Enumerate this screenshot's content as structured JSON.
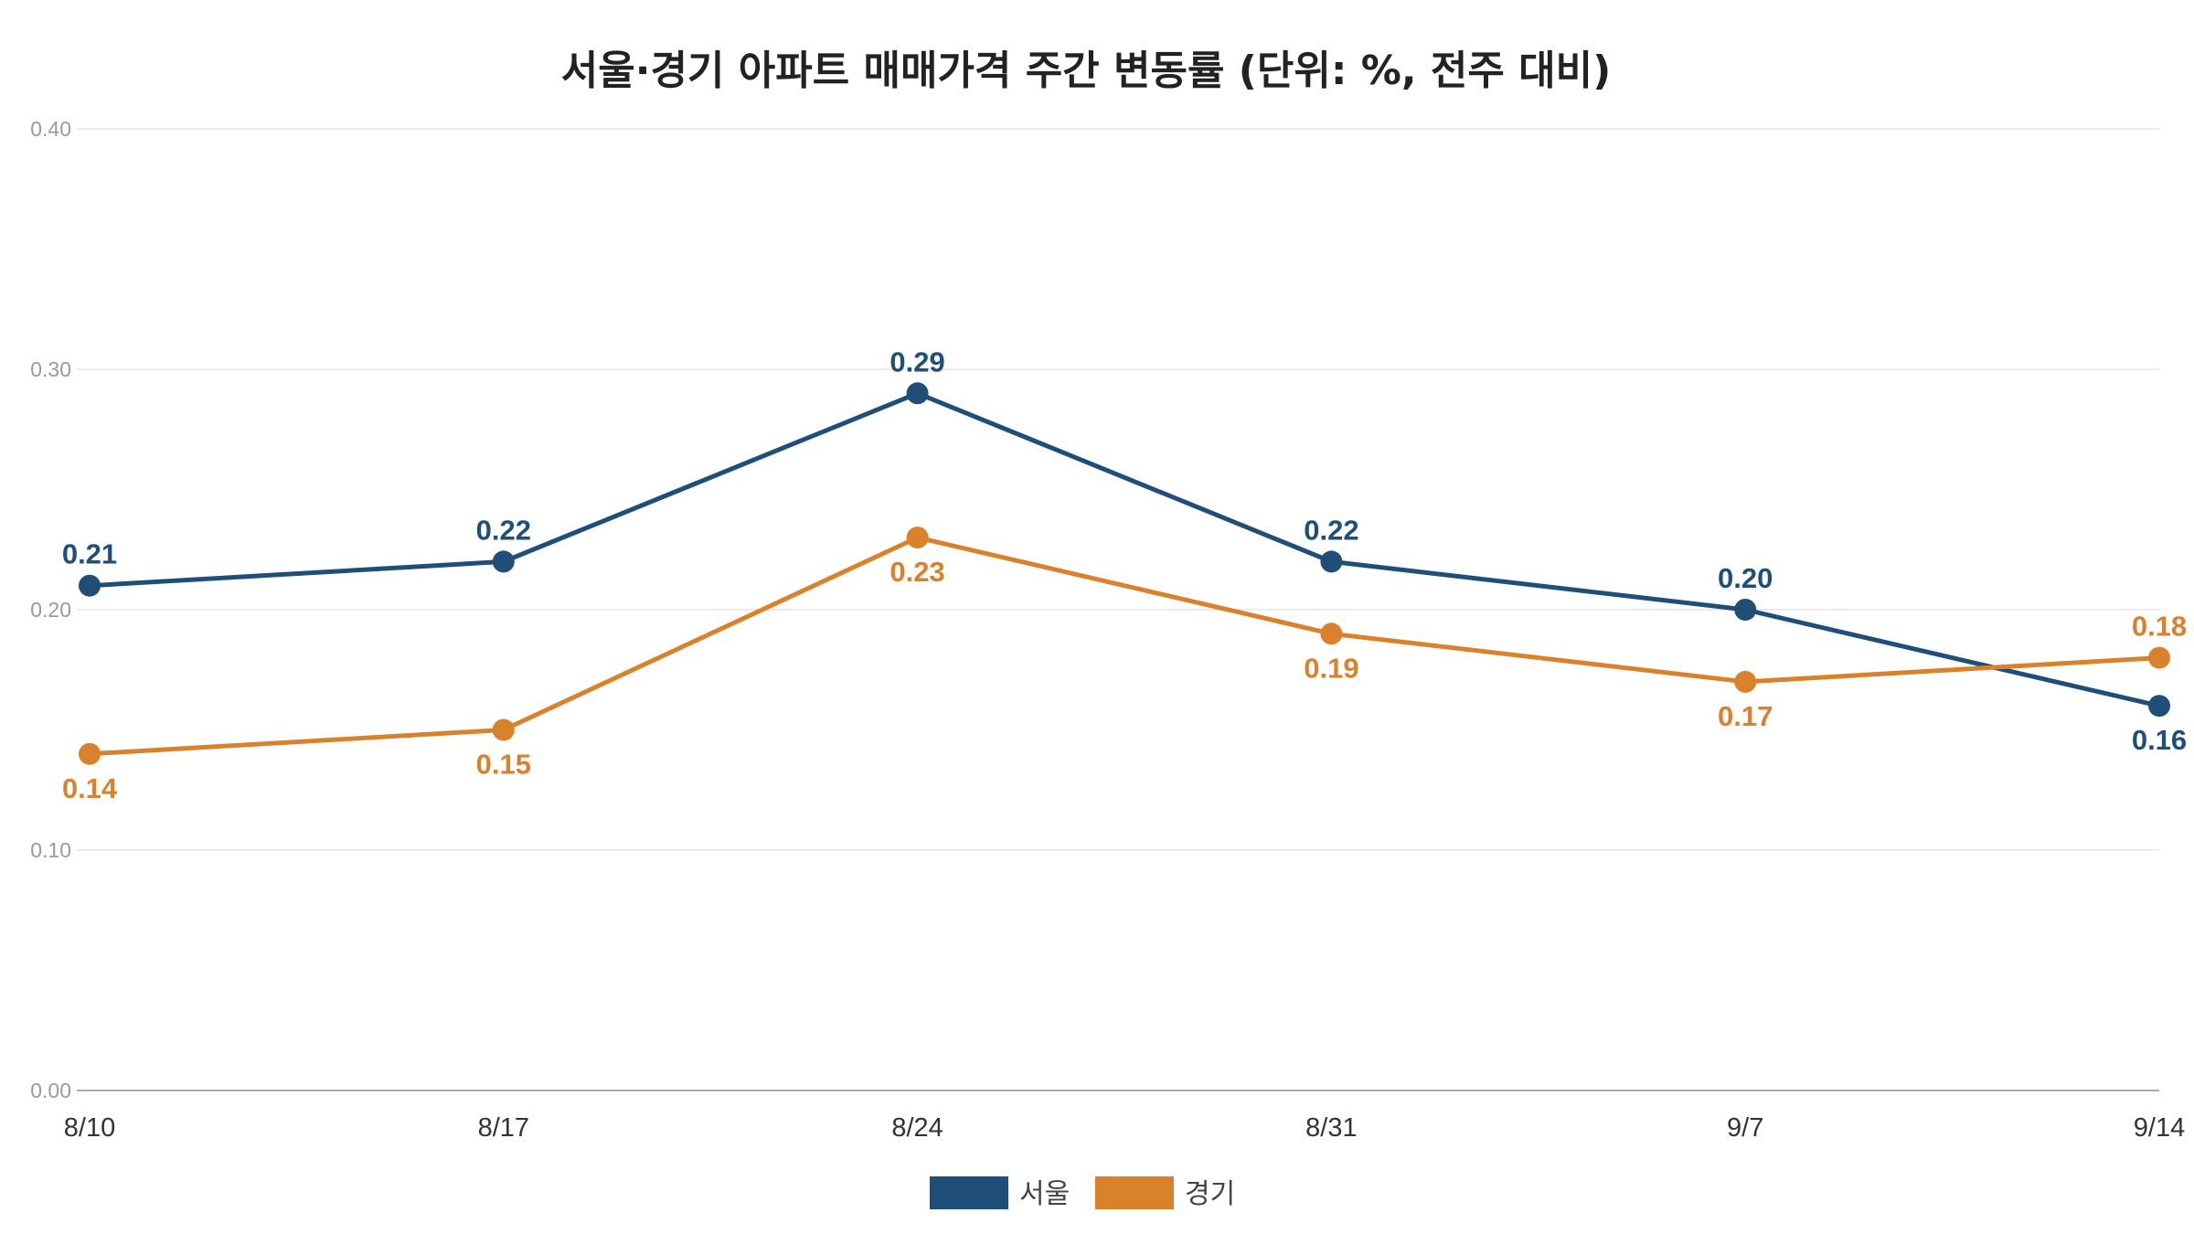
{
  "chart_data": {
    "type": "line",
    "title": "서울·경기 아파트 매매가격 주간 변동률 (단위: %, 전주 대비)",
    "xlabel": "",
    "ylabel": "",
    "categories": [
      "8/10",
      "8/17",
      "8/24",
      "8/31",
      "9/7",
      "9/14"
    ],
    "ylim": [
      0,
      0.4
    ],
    "yticks": [
      "0.00",
      "0.10",
      "0.20",
      "0.30",
      "0.40"
    ],
    "grid": true,
    "legend_position": "bottom-center",
    "series": [
      {
        "name": "서울",
        "color": "#1f4e79",
        "values": [
          0.21,
          0.22,
          0.29,
          0.22,
          0.2,
          0.16
        ],
        "labels": [
          "0.21",
          "0.22",
          "0.29",
          "0.22",
          "0.20",
          "0.16"
        ]
      },
      {
        "name": "경기",
        "color": "#d9822b",
        "values": [
          0.14,
          0.15,
          0.23,
          0.19,
          0.17,
          0.18
        ],
        "labels": [
          "0.14",
          "0.15",
          "0.23",
          "0.19",
          "0.17",
          "0.18"
        ]
      }
    ]
  }
}
